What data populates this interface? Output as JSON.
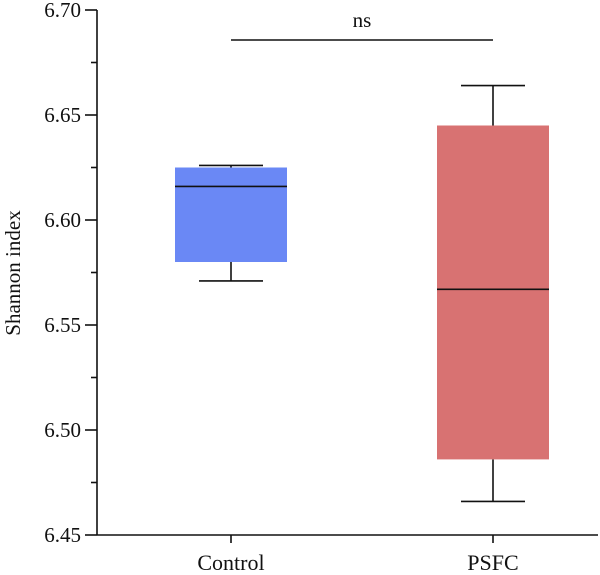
{
  "chart_data": {
    "type": "box",
    "title": "",
    "xlabel": "",
    "ylabel": "Shannon index",
    "ylim": [
      6.45,
      6.7
    ],
    "yticks": [
      "6.45",
      "6.50",
      "6.55",
      "6.60",
      "6.65",
      "6.70"
    ],
    "grid": false,
    "categories": [
      "Control",
      "PSFC"
    ],
    "boxes": [
      {
        "category": "Control",
        "min": 6.571,
        "q1": 6.58,
        "median": 6.616,
        "q3": 6.625,
        "max": 6.626,
        "color": "#6a88f5"
      },
      {
        "category": "PSFC",
        "min": 6.466,
        "q1": 6.486,
        "median": 6.567,
        "q3": 6.645,
        "max": 6.664,
        "color": "#d87272"
      }
    ],
    "annotations": [
      {
        "text": "ns",
        "between": [
          "Control",
          "PSFC"
        ]
      }
    ]
  }
}
